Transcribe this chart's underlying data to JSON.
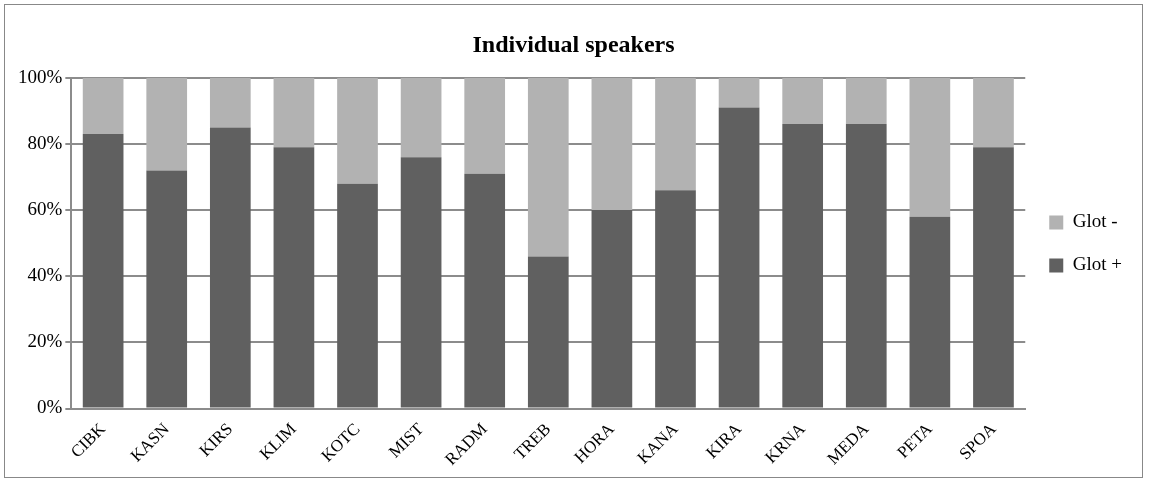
{
  "chart_data": {
    "type": "bar",
    "title": "Individual speakers",
    "stacked": true,
    "categories": [
      "CIBK",
      "KASN",
      "KIRS",
      "KLIM",
      "KOTC",
      "MIST",
      "RADM",
      "TREB",
      "HORA",
      "KANA",
      "KIRA",
      "KRNA",
      "MEDA",
      "PETA",
      "SPOA"
    ],
    "series": [
      {
        "name": "Glot +",
        "color": "#606060",
        "values": [
          83,
          72,
          85,
          79,
          68,
          76,
          71,
          46,
          60,
          66,
          91,
          86,
          86,
          58,
          79
        ]
      },
      {
        "name": "Glot -",
        "color": "#b2b2b2",
        "values": [
          17,
          28,
          15,
          21,
          32,
          24,
          29,
          54,
          40,
          34,
          9,
          14,
          14,
          42,
          21
        ]
      }
    ],
    "ylim": [
      0,
      100
    ],
    "yticks": [
      {
        "value": 0,
        "label": "0%"
      },
      {
        "value": 20,
        "label": "20%"
      },
      {
        "value": 40,
        "label": "40%"
      },
      {
        "value": 60,
        "label": "60%"
      },
      {
        "value": 80,
        "label": "80%"
      },
      {
        "value": 100,
        "label": "100%"
      }
    ],
    "grid": "y",
    "legend": "right"
  }
}
